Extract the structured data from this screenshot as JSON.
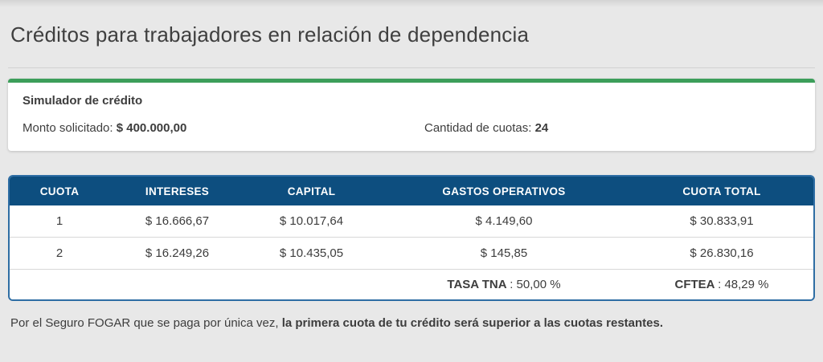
{
  "page": {
    "title": "Créditos para trabajadores en relación de dependencia",
    "footnote_regular": "Por el Seguro FOGAR que se paga por única vez, ",
    "footnote_bold": "la primera cuota de tu crédito será superior a las cuotas restantes."
  },
  "simulator": {
    "heading": "Simulador de crédito",
    "monto_label": "Monto solicitado: ",
    "monto_value": "$ 400.000,00",
    "cuotas_label": "Cantidad de cuotas: ",
    "cuotas_value": "24"
  },
  "table": {
    "headers": [
      "CUOTA",
      "INTERESES",
      "CAPITAL",
      "GASTOS OPERATIVOS",
      "CUOTA TOTAL"
    ],
    "rows": [
      [
        "1",
        "$ 16.666,67",
        "$ 10.017,64",
        "$ 4.149,60",
        "$ 30.833,91"
      ],
      [
        "2",
        "$ 16.249,26",
        "$ 10.435,05",
        "$ 145,85",
        "$ 26.830,16"
      ]
    ],
    "summary": {
      "tna_label": "TASA TNA ",
      "tna_value": ": 50,00 %",
      "cftea_label": "CFTEA ",
      "cftea_value": ": 48,29 %"
    }
  },
  "colors": {
    "accent_green": "#3c9e5a",
    "header_blue": "#0d4e7f",
    "table_border_blue": "#2e6da4",
    "page_background": "#e8e8e8",
    "text_dark": "#3d3d3d"
  }
}
